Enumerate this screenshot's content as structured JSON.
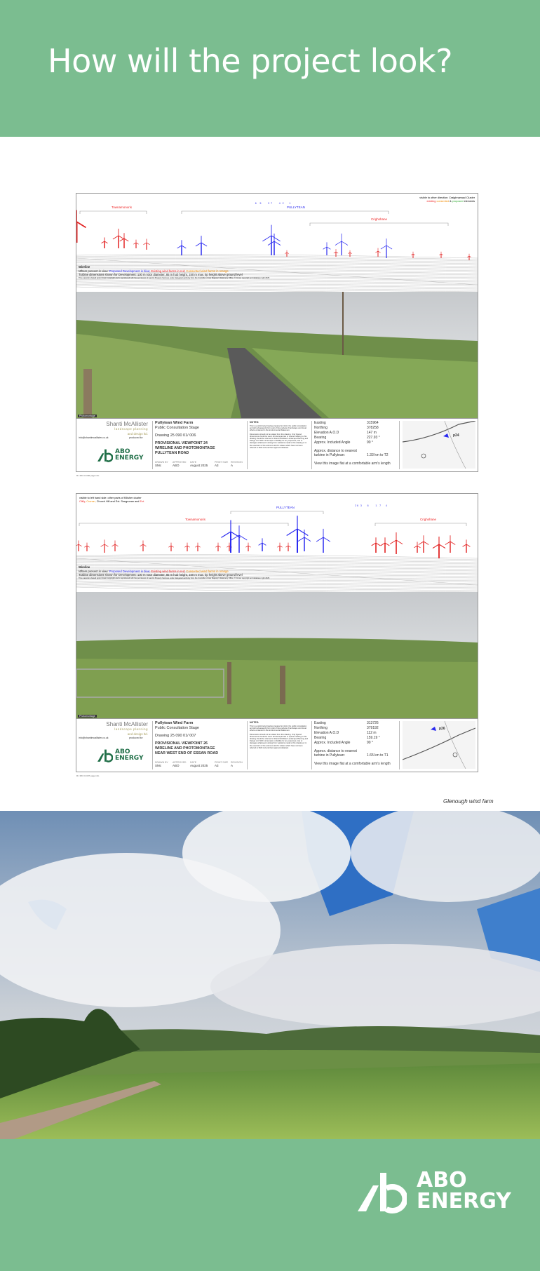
{
  "header": {
    "title": "How will the project look?"
  },
  "panels": [
    {
      "wireline": {
        "clusters": [
          "Townamonoris",
          "PULLYTEAN",
          "Crighshane"
        ],
        "turbine_numbers": "6     5          3  7          4   2        1",
        "note_line1": "visible to other direction: Craighnamaul Cluster",
        "note_line2_existing": "existing",
        "note_line2_consented": "consented",
        "note_line2_and": "&",
        "note_line2_proposed": "proposed",
        "note_line2_end": "elements",
        "legend_title": "Wireline",
        "legend_prefix": "Where present in view:",
        "legend_blue": "Proposed Development in blue;",
        "legend_red": "Existing wind farms in red;",
        "legend_orange": "Consented wind farms in orange",
        "dims": "Turbine dimensions shown for Development: 130 m rotor diameter, 85 m hub height, 150 m max. tip height above ground level",
        "copyright": "This material is based upon Crown Copyright and is reproduced with the permission of Land & Property Services under delegated authority from the Controller of Her Majesty's Stationery Office, © Crown copyright and database right 2025."
      },
      "photo_label": "Photomontage",
      "info": {
        "company": "Shanti McAllister",
        "company_sub1": "landscape planning",
        "company_sub2": "and design ltd.",
        "email": "info@shantimcallister.co.uk",
        "produced_for": "produced for",
        "client_line1": "ABO",
        "client_line2": "ENERGY",
        "project": "Pullytean Wind Farm",
        "stage": "Public Consultation Stage",
        "drawing": "Drawing 25 090 01/ 006",
        "title1": "PROVISIONAL VIEWPOINT 24",
        "title2": "WIRELINE AND PHOTOMONTAGE",
        "title3": "PULLYTEAN ROAD",
        "meta": [
          {
            "k": "DRAWN BY",
            "v": "SMc"
          },
          {
            "k": "APPROVED",
            "v": "ABO"
          },
          {
            "k": "DATE",
            "v": "August 2025"
          },
          {
            "k": "PRINT SIZE",
            "v": "A3"
          },
          {
            "k": "REVISION",
            "v": "A"
          }
        ],
        "notes_title": "NOTES:",
        "notes1": "This is a preliminary drawing prepared to inform the public consultation and will subsequently form part of the analysis of landscape and visual effects contained in the Environmental Statement.",
        "notes2": "Dimensions should not be scaled from this drawing. Only figured dimensions should be used. All discrepancies or queries relating to this drawing should be referred to Shanti McAllister Landscape Planning and Design Ltd. SMC Ltd accepts no liability for any expenses, loss or damages whatsoever arising from variations made to this drawing or in the execution of the works to which it relates which have not been referred to SMC Ltd and their approval obtained.",
        "rows": [
          {
            "k": "Easting",
            "v": "315964"
          },
          {
            "k": "Northing",
            "v": "378258"
          },
          {
            "k": "Elevation A.O.D",
            "v": "147 m"
          },
          {
            "k": "Bearing",
            "v": "227.93 °"
          },
          {
            "k": "Approx. Included Angle",
            "v": "90 °"
          }
        ],
        "distance_label1": "Approx. distance to nearest",
        "distance_label2": "turbine in Pullytean:",
        "distance_value": "1.33 km to T2",
        "view_note": "View this image flat at a comfortable arm's length",
        "map_label": "p24"
      },
      "footnote": "Rr. MK 01 006 page info"
    },
    {
      "wireline": {
        "clusters": [
          "Townamonoris",
          "PULLYTEAN",
          "Crighshane"
        ],
        "turbine_numbers": "2 6   3        6          1    7       4",
        "note_line1": "visible to left hand side: other parts of Kilisher cluster",
        "note_line2_existing": "Cliffy,",
        "note_line2_consented": "Cronan,",
        "note_line2_and": "Church Hill and Ext. Seegronan and",
        "note_line2_proposed": "Ext.",
        "note_line2_end": "",
        "legend_title": "Wireline",
        "legend_prefix": "Where present in view:",
        "legend_blue": "Proposed Development in blue;",
        "legend_red": "Existing wind farms in red;",
        "legend_orange": "Consented wind farms in orange",
        "dims": "Turbine dimensions shown for Development: 130 m rotor diameter, 85 m hub height, 150 m max. tip height above ground level",
        "copyright": "This material is based upon Crown Copyright and is reproduced with the permission of Land & Property Services under delegated authority from the Controller of Her Majesty's Stationery Office, © Crown copyright and database right 2025."
      },
      "photo_label": "Photomontage",
      "info": {
        "company": "Shanti McAllister",
        "company_sub1": "landscape planning",
        "company_sub2": "and design ltd.",
        "email": "info@shantimcallister.co.uk",
        "produced_for": "produced for",
        "client_line1": "ABO",
        "client_line2": "ENERGY",
        "project": "Pullytean Wind Farm",
        "stage": "Public Consultation Stage",
        "drawing": "Drawing 25 090 01/ 007",
        "title1": "PROVISIONAL VIEWPOINT 26",
        "title2": "WIRELINE AND PHOTOMONTAGE",
        "title3": "NEAR WEST END OF ESSAN ROAD",
        "meta": [
          {
            "k": "DRAWN BY",
            "v": "SMc"
          },
          {
            "k": "APPROVED",
            "v": "ABO"
          },
          {
            "k": "DATE",
            "v": "August 2025"
          },
          {
            "k": "PRINT SIZE",
            "v": "A3"
          },
          {
            "k": "REVISION",
            "v": "A"
          }
        ],
        "notes_title": "NOTES:",
        "notes1": "This is a preliminary drawing prepared to inform the public consultation and will subsequently form part of the analysis of landscape and visual effects contained in the Environmental Statement.",
        "notes2": "Dimensions should not be scaled from this drawing. Only figured dimensions should be used. All discrepancies or queries relating to this drawing should be referred to Shanti McAllister Landscape Planning and Design Ltd. SMC Ltd accepts no liability for any expenses, loss or damages whatsoever arising from variations made to this drawing or in the execution of the works to which it relates which have not been referred to SMC Ltd and their approval obtained.",
        "rows": [
          {
            "k": "Easting",
            "v": "313726"
          },
          {
            "k": "Northing",
            "v": "379192"
          },
          {
            "k": "Elevation A.O.D",
            "v": "112 m"
          },
          {
            "k": "Bearing",
            "v": "159.19 °"
          },
          {
            "k": "Approx. Included Angle",
            "v": "90 °"
          }
        ],
        "distance_label1": "Approx. distance to nearest",
        "distance_label2": "turbine in Pullytean:",
        "distance_value": "1.65 km to T1",
        "view_note": "View this image flat at a comfortable arm's length",
        "map_label": "p26"
      },
      "footnote": "Rr. MK 01 007 page info"
    }
  ],
  "caption": "Glenough wind farm",
  "footer": {
    "logo_line1": "ABO",
    "logo_line2": "ENERGY"
  },
  "colors": {
    "brand_green": "#7bbd90",
    "proposed": "#2a2af0",
    "existing": "#e22222",
    "consented": "#f08a00"
  }
}
